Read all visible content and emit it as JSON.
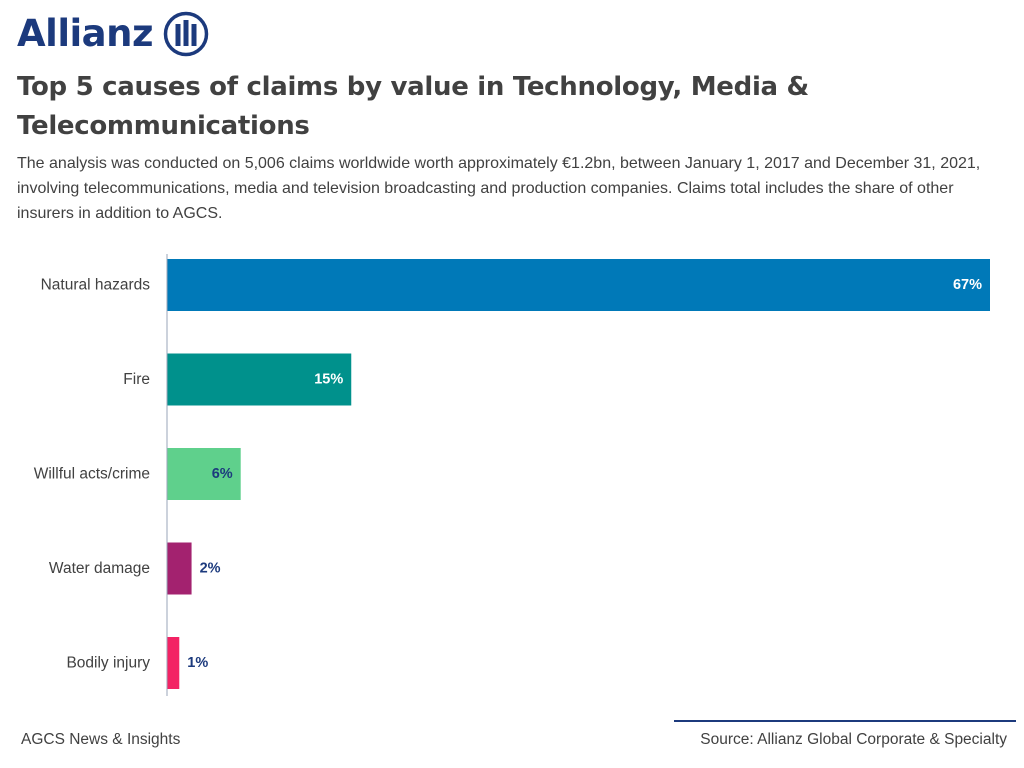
{
  "brand": {
    "name": "Allianz",
    "colors": {
      "navy": "#1c3a7d",
      "text": "#414141",
      "axis": "#9aa6b8"
    }
  },
  "header": {
    "title": "Top 5 causes of claims by value in Technology, Media & Telecommunications",
    "subtitle": "The analysis was conducted on 5,006 claims worldwide worth approximately €1.2bn, between January 1, 2017 and December 31, 2021, involving telecommunications, media and television broadcasting and production companies. Claims total includes the share of other insurers in addition to AGCS."
  },
  "chart_data": {
    "type": "bar",
    "orientation": "horizontal",
    "title": "Top 5 causes of claims by value in Technology, Media & Telecommunications",
    "xlabel": "",
    "ylabel": "",
    "value_unit": "%",
    "xlim": [
      0,
      67
    ],
    "grid": false,
    "categories": [
      "Natural hazards",
      "Fire",
      "Willful acts/crime",
      "Water damage",
      "Bodily injury"
    ],
    "values": [
      67,
      15,
      6,
      2,
      1
    ],
    "data_labels": [
      "67%",
      "15%",
      "6%",
      "2%",
      "1%"
    ],
    "colors": [
      "#0079b8",
      "#00918c",
      "#5fd08c",
      "#a3226f",
      "#f32364"
    ],
    "label_colors": [
      "#ffffff",
      "#ffffff",
      "#1c3a7d",
      "#1c3a7d",
      "#1c3a7d"
    ]
  },
  "footer": {
    "left": "AGCS News & Insights",
    "right": "Source: Allianz Global Corporate & Specialty"
  }
}
